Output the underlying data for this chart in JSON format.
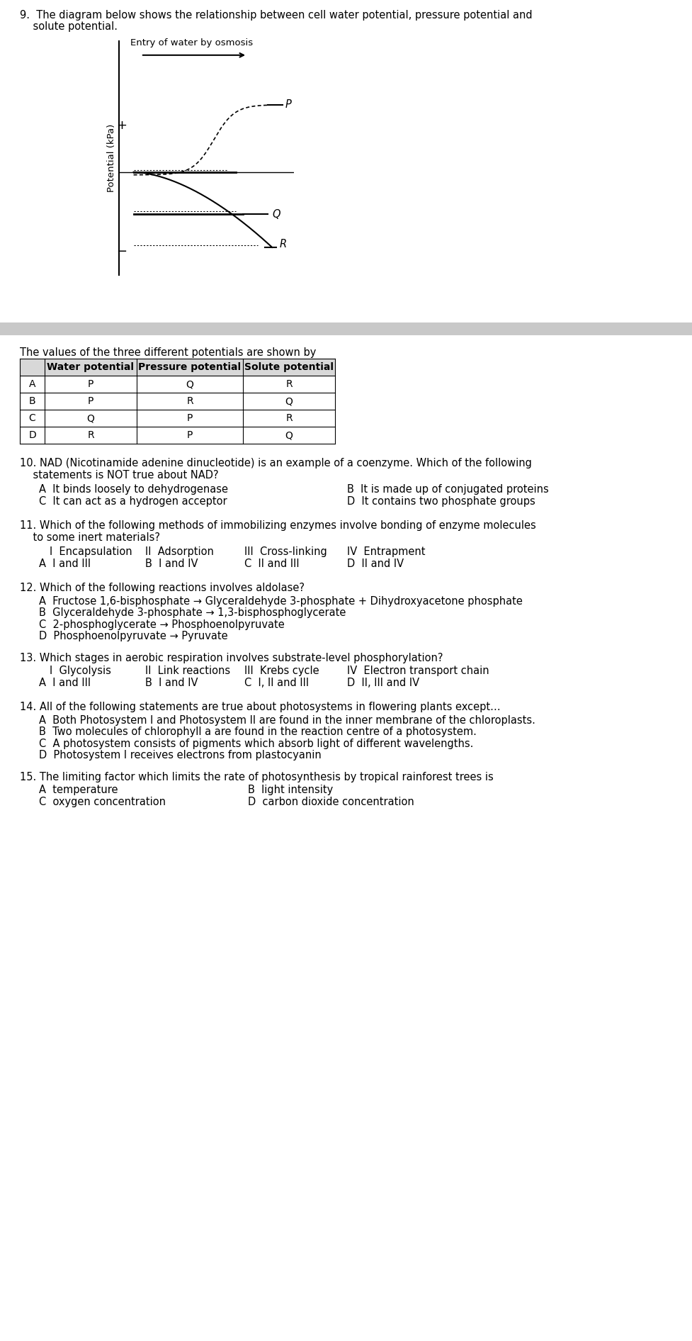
{
  "bg_color": "#ffffff",
  "fig_width": 9.77,
  "fig_height": 18.92,
  "q9_text_line1": "9.  The diagram below shows the relationship between cell water potential, pressure potential and",
  "q9_text_line2": "    solute potential.",
  "graph_title": "Entry of water by osmosis",
  "ylabel": "Potential (kPa)",
  "plus_label": "+",
  "minus_label": "−",
  "table_intro": "The values of the three different potentials are shown by",
  "table_headers": [
    "",
    "Water potential",
    "Pressure potential",
    "Solute potential"
  ],
  "table_rows": [
    [
      "A",
      "P",
      "Q",
      "R"
    ],
    [
      "B",
      "P",
      "R",
      "Q"
    ],
    [
      "C",
      "Q",
      "P",
      "R"
    ],
    [
      "D",
      "R",
      "P",
      "Q"
    ]
  ],
  "q10_line1": "10. NAD (Nicotinamide adenine dinucleotide) is an example of a coenzyme. Which of the following",
  "q10_line2": "    statements is NOT true about NAD?",
  "q10_A": "A  It binds loosely to dehydrogenase",
  "q10_B": "B  It is made up of conjugated proteins",
  "q10_C": "C  It can act as a hydrogen acceptor",
  "q10_D": "D  It contains two phosphate groups",
  "q11_line1": "11. Which of the following methods of immobilizing enzymes involve bonding of enzyme molecules",
  "q11_line2": "    to some inert materials?",
  "q11_I": "I  Encapsulation",
  "q11_II": "II  Adsorption",
  "q11_III": "III  Cross-linking",
  "q11_IV": "IV  Entrapment",
  "q11_A": "A  I and III",
  "q11_B": "B  I and IV",
  "q11_C": "C  II and III",
  "q11_D": "D  II and IV",
  "q12_stem": "12. Which of the following reactions involves aldolase?",
  "q12_A": "A  Fructose 1,6-bisphosphate → Glyceraldehyde 3-phosphate + Dihydroxyacetone phosphate",
  "q12_B": "B  Glyceraldehyde 3-phosphate → 1,3-bisphosphoglycerate",
  "q12_C": "C  2-phosphoglycerate → Phosphoenolpyruvate",
  "q12_D": "D  Phosphoenolpyruvate → Pyruvate",
  "q13_stem": "13. Which stages in aerobic respiration involves substrate-level phosphorylation?",
  "q13_I": "I  Glycolysis",
  "q13_II": "II  Link reactions",
  "q13_III": "III  Krebs cycle",
  "q13_IV": "IV  Electron transport chain",
  "q13_A": "A  I and III",
  "q13_B": "B  I and IV",
  "q13_C": "C  I, II and III",
  "q13_D": "D  II, III and IV",
  "q14_stem": "14. All of the following statements are true about photosystems in flowering plants except…",
  "q14_A": "A  Both Photosystem I and Photosystem II are found in the inner membrane of the chloroplasts.",
  "q14_B": "B  Two molecules of chlorophyll a are found in the reaction centre of a photosystem.",
  "q14_C": "C  A photosystem consists of pigments which absorb light of different wavelengths.",
  "q14_D": "D  Photosystem I receives electrons from plastocyanin",
  "q15_stem": "15. The limiting factor which limits the rate of photosynthesis by tropical rainforest trees is",
  "q15_A": "A  temperature",
  "q15_B": "B  light intensity",
  "q15_C": "C  oxygen concentration",
  "q15_D": "D  carbon dioxide concentration",
  "separator_color": "#c8c8c8"
}
